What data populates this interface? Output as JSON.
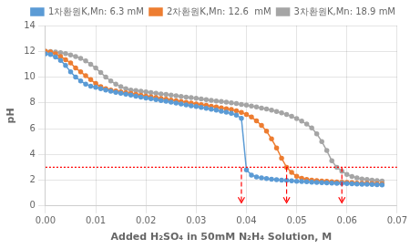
{
  "chart_data": {
    "type": "line",
    "xlabel": "Added H₂SO₄ in 50mM N₂H₄ Solution, M",
    "ylabel": "pH",
    "xlim": [
      0.0,
      0.07
    ],
    "ylim": [
      0.0,
      14.0
    ],
    "xticks": [
      {
        "value": 0.0,
        "label": "0.00"
      },
      0.01,
      0.02,
      0.03,
      0.04,
      0.05,
      0.06,
      0.07
    ],
    "yticks": [
      0,
      2,
      4,
      6,
      8,
      10,
      12,
      14
    ],
    "grid": true,
    "legend": "upper right",
    "marker": "o",
    "x": [
      0.0,
      0.001,
      0.002,
      0.003,
      0.004,
      0.005,
      0.006,
      0.007,
      0.008,
      0.009,
      0.01,
      0.011,
      0.012,
      0.013,
      0.014,
      0.015,
      0.016,
      0.017,
      0.018,
      0.019,
      0.02,
      0.021,
      0.022,
      0.023,
      0.024,
      0.025,
      0.026,
      0.027,
      0.028,
      0.029,
      0.03,
      0.031,
      0.032,
      0.033,
      0.034,
      0.035,
      0.036,
      0.037,
      0.038,
      0.039,
      0.04,
      0.041,
      0.042,
      0.043,
      0.044,
      0.045,
      0.046,
      0.047,
      0.048,
      0.049,
      0.05,
      0.051,
      0.052,
      0.053,
      0.054,
      0.055,
      0.056,
      0.057,
      0.058,
      0.059,
      0.06,
      0.061,
      0.062,
      0.063,
      0.064,
      0.065,
      0.066,
      0.067
    ],
    "series": [
      {
        "name": "1차환원K,Mn: 6.3 mM",
        "color": "#5B9BD5",
        "values": [
          11.8,
          11.75,
          11.55,
          11.3,
          10.9,
          10.4,
          10.0,
          9.7,
          9.45,
          9.3,
          9.2,
          9.1,
          9.0,
          8.9,
          8.82,
          8.75,
          8.68,
          8.6,
          8.52,
          8.45,
          8.38,
          8.32,
          8.25,
          8.18,
          8.12,
          8.05,
          7.98,
          7.92,
          7.85,
          7.78,
          7.72,
          7.65,
          7.58,
          7.5,
          7.43,
          7.35,
          7.28,
          7.18,
          7.05,
          6.8,
          2.8,
          2.4,
          2.25,
          2.18,
          2.12,
          2.08,
          2.04,
          2.01,
          1.98,
          1.95,
          1.92,
          1.9,
          1.88,
          1.85,
          1.83,
          1.81,
          1.79,
          1.78,
          1.76,
          1.75,
          1.73,
          1.72,
          1.7,
          1.69,
          1.68,
          1.67,
          1.65,
          1.64
        ]
      },
      {
        "name": "2차환원K,Mn: 12.6  mM",
        "color": "#ED7D31",
        "values": [
          12.0,
          11.95,
          11.8,
          11.6,
          11.35,
          11.1,
          10.7,
          10.4,
          10.1,
          9.8,
          9.5,
          9.25,
          9.1,
          9.0,
          8.92,
          8.85,
          8.78,
          8.72,
          8.65,
          8.58,
          8.52,
          8.46,
          8.4,
          8.34,
          8.28,
          8.22,
          8.16,
          8.1,
          8.04,
          7.98,
          7.92,
          7.86,
          7.8,
          7.74,
          7.68,
          7.62,
          7.55,
          7.48,
          7.38,
          7.25,
          7.1,
          6.9,
          6.6,
          6.25,
          5.8,
          5.2,
          4.5,
          3.7,
          3.0,
          2.6,
          2.3,
          2.15,
          2.05,
          2.0,
          1.97,
          1.94,
          1.91,
          1.88,
          1.86,
          1.84,
          1.82,
          1.8,
          1.78,
          1.76,
          1.75,
          1.73,
          1.72,
          1.71
        ]
      },
      {
        "name": "3차환원K,Mn: 18.9 mM",
        "color": "#A5A5A5",
        "values": [
          12.0,
          11.98,
          11.95,
          11.9,
          11.82,
          11.72,
          11.6,
          11.45,
          11.25,
          11.0,
          10.7,
          10.35,
          10.0,
          9.7,
          9.45,
          9.25,
          9.1,
          9.0,
          8.95,
          8.9,
          8.85,
          8.8,
          8.75,
          8.7,
          8.65,
          8.6,
          8.55,
          8.5,
          8.45,
          8.4,
          8.35,
          8.3,
          8.25,
          8.2,
          8.15,
          8.1,
          8.05,
          8.0,
          7.94,
          7.88,
          7.82,
          7.75,
          7.68,
          7.6,
          7.52,
          7.43,
          7.33,
          7.22,
          7.1,
          6.95,
          6.78,
          6.58,
          6.35,
          6.05,
          5.6,
          5.0,
          4.3,
          3.5,
          3.0,
          2.7,
          2.45,
          2.28,
          2.18,
          2.1,
          2.05,
          2.0,
          1.97,
          1.94
        ]
      }
    ],
    "hline": {
      "y": 3.0,
      "color": "#FF0000",
      "line_style": "dotted"
    },
    "arrows": {
      "x": [
        0.039,
        0.048,
        0.059
      ],
      "y_start": 3.0,
      "y_end": 0.25,
      "color": "#FF0000",
      "line_style": "dashed"
    }
  }
}
